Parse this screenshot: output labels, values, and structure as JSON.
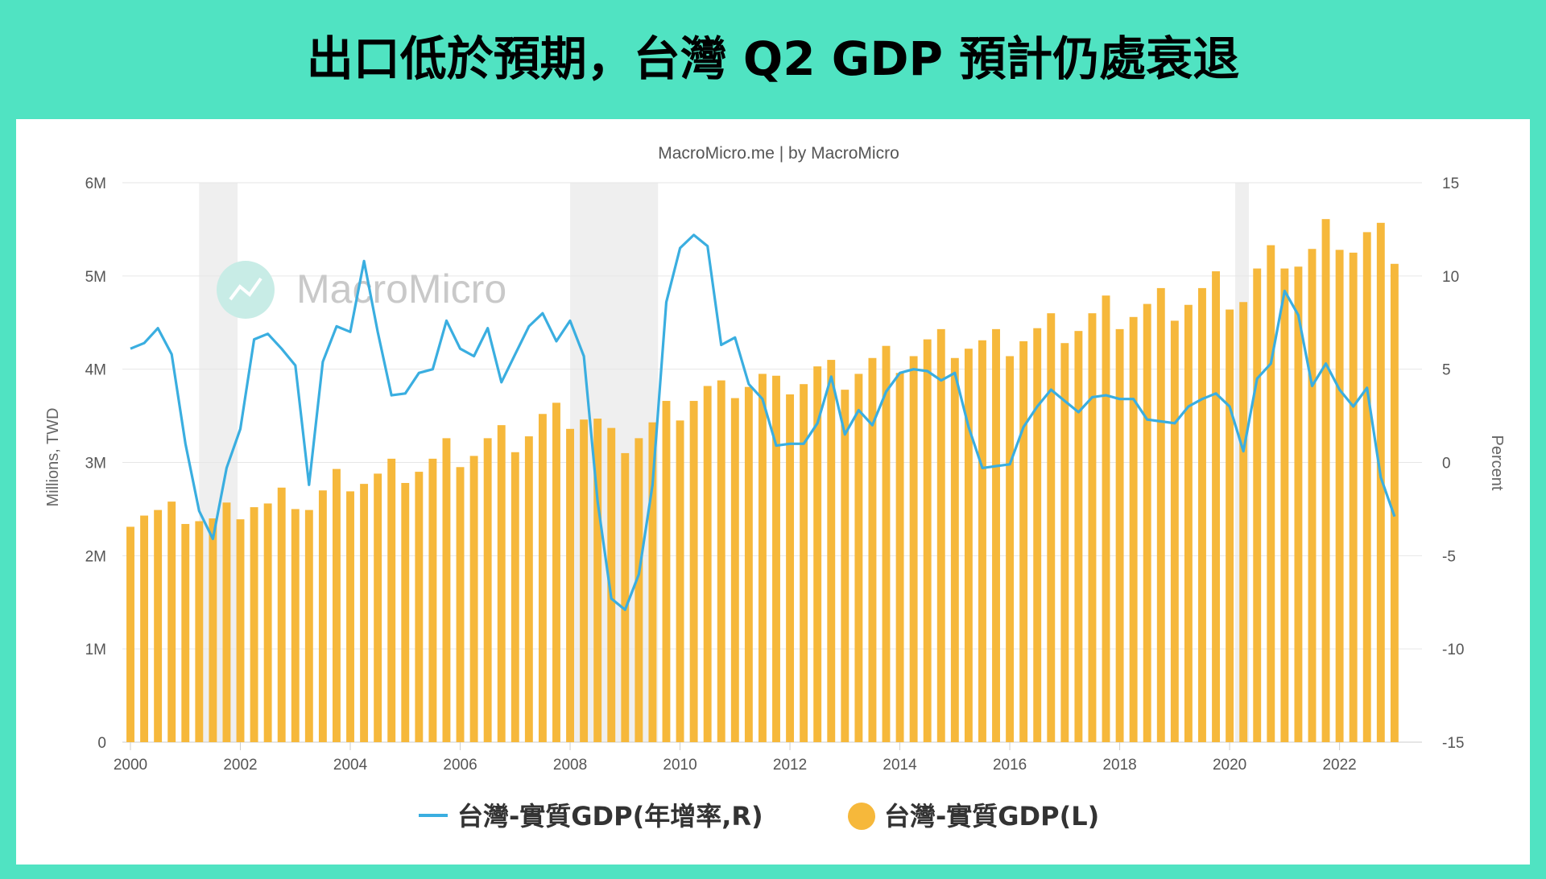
{
  "headline": "出口低於預期，台灣 Q2 GDP 預計仍處衰退",
  "colors": {
    "background": "#50e3c2",
    "bar": "#f6b83b",
    "line": "#3aaee0",
    "recession_band": "#efefef"
  },
  "chart_data": {
    "type": "bar+line",
    "subtitle": "MacroMicro.me | by MacroMicro",
    "watermark": "MacroMicro",
    "left_axis": {
      "label": "Millions, TWD",
      "ticks": [
        "0",
        "1M",
        "2M",
        "3M",
        "4M",
        "5M",
        "6M"
      ],
      "range": [
        0,
        6000000
      ]
    },
    "right_axis": {
      "label": "Percent",
      "ticks": [
        "-15",
        "-10",
        "-5",
        "0",
        "5",
        "10",
        "15"
      ],
      "range": [
        -15,
        15
      ]
    },
    "x_axis": {
      "ticks": [
        "2000",
        "2002",
        "2004",
        "2006",
        "2008",
        "2010",
        "2012",
        "2014",
        "2016",
        "2018",
        "2020",
        "2022"
      ],
      "range": [
        2000.0,
        2023.5
      ]
    },
    "recession_bands": [
      [
        2001.25,
        2001.95
      ],
      [
        2008.0,
        2009.6
      ],
      [
        2020.1,
        2020.35
      ]
    ],
    "legend": {
      "position": "bottom",
      "items": [
        {
          "label": "台灣-實質GDP(年增率,R)",
          "marker": "line"
        },
        {
          "label": "台灣-實質GDP(L)",
          "marker": "circle"
        }
      ]
    },
    "series": [
      {
        "name": "台灣-實質GDP(年增率,R)",
        "type": "line",
        "axis": "right",
        "x": [
          2000.0,
          2000.25,
          2000.5,
          2000.75,
          2001.0,
          2001.25,
          2001.5,
          2001.75,
          2002.0,
          2002.25,
          2002.5,
          2002.75,
          2003.0,
          2003.25,
          2003.5,
          2003.75,
          2004.0,
          2004.25,
          2004.5,
          2004.75,
          2005.0,
          2005.25,
          2005.5,
          2005.75,
          2006.0,
          2006.25,
          2006.5,
          2006.75,
          2007.0,
          2007.25,
          2007.5,
          2007.75,
          2008.0,
          2008.25,
          2008.5,
          2008.75,
          2009.0,
          2009.25,
          2009.5,
          2009.75,
          2010.0,
          2010.25,
          2010.5,
          2010.75,
          2011.0,
          2011.25,
          2011.5,
          2011.75,
          2012.0,
          2012.25,
          2012.5,
          2012.75,
          2013.0,
          2013.25,
          2013.5,
          2013.75,
          2014.0,
          2014.25,
          2014.5,
          2014.75,
          2015.0,
          2015.25,
          2015.5,
          2015.75,
          2016.0,
          2016.25,
          2016.5,
          2016.75,
          2017.0,
          2017.25,
          2017.5,
          2017.75,
          2018.0,
          2018.25,
          2018.5,
          2018.75,
          2019.0,
          2019.25,
          2019.5,
          2019.75,
          2020.0,
          2020.25,
          2020.5,
          2020.75,
          2021.0,
          2021.25,
          2021.5,
          2021.75,
          2022.0,
          2022.25,
          2022.5,
          2022.75,
          2023.0
        ],
        "values": [
          6.1,
          6.4,
          7.2,
          5.8,
          1.0,
          -2.6,
          -4.1,
          -0.3,
          1.8,
          6.6,
          6.9,
          6.1,
          5.2,
          -1.2,
          5.4,
          7.3,
          7.0,
          10.8,
          7.0,
          3.6,
          3.7,
          4.8,
          5.0,
          7.6,
          6.1,
          5.7,
          7.2,
          4.3,
          5.8,
          7.3,
          8.0,
          6.5,
          7.6,
          5.7,
          -2.1,
          -7.3,
          -7.9,
          -6.0,
          -1.2,
          8.6,
          11.5,
          12.2,
          11.6,
          6.3,
          6.7,
          4.2,
          3.4,
          0.9,
          1.0,
          1.0,
          2.1,
          4.6,
          1.5,
          2.8,
          2.0,
          3.8,
          4.8,
          5.0,
          4.9,
          4.4,
          4.8,
          1.9,
          -0.3,
          -0.2,
          -0.1,
          1.9,
          3.0,
          3.9,
          3.3,
          2.7,
          3.5,
          3.6,
          3.4,
          3.4,
          2.3,
          2.2,
          2.1,
          3.0,
          3.4,
          3.7,
          3.0,
          0.6,
          4.5,
          5.3,
          9.2,
          7.9,
          4.1,
          5.3,
          3.9,
          3.0,
          4.0,
          -0.8,
          -2.9
        ]
      },
      {
        "name": "台灣-實質GDP(L)",
        "type": "bar",
        "axis": "left",
        "unit": "Millions, TWD",
        "x": [
          2000.0,
          2000.25,
          2000.5,
          2000.75,
          2001.0,
          2001.25,
          2001.5,
          2001.75,
          2002.0,
          2002.25,
          2002.5,
          2002.75,
          2003.0,
          2003.25,
          2003.5,
          2003.75,
          2004.0,
          2004.25,
          2004.5,
          2004.75,
          2005.0,
          2005.25,
          2005.5,
          2005.75,
          2006.0,
          2006.25,
          2006.5,
          2006.75,
          2007.0,
          2007.25,
          2007.5,
          2007.75,
          2008.0,
          2008.25,
          2008.5,
          2008.75,
          2009.0,
          2009.25,
          2009.5,
          2009.75,
          2010.0,
          2010.25,
          2010.5,
          2010.75,
          2011.0,
          2011.25,
          2011.5,
          2011.75,
          2012.0,
          2012.25,
          2012.5,
          2012.75,
          2013.0,
          2013.25,
          2013.5,
          2013.75,
          2014.0,
          2014.25,
          2014.5,
          2014.75,
          2015.0,
          2015.25,
          2015.5,
          2015.75,
          2016.0,
          2016.25,
          2016.5,
          2016.75,
          2017.0,
          2017.25,
          2017.5,
          2017.75,
          2018.0,
          2018.25,
          2018.5,
          2018.75,
          2019.0,
          2019.25,
          2019.5,
          2019.75,
          2020.0,
          2020.25,
          2020.5,
          2020.75,
          2021.0,
          2021.25,
          2021.5,
          2021.75,
          2022.0,
          2022.25,
          2022.5,
          2022.75,
          2023.0
        ],
        "values": [
          2310000,
          2430000,
          2490000,
          2580000,
          2340000,
          2370000,
          2400000,
          2570000,
          2390000,
          2520000,
          2560000,
          2730000,
          2500000,
          2490000,
          2700000,
          2930000,
          2690000,
          2770000,
          2880000,
          3040000,
          2780000,
          2900000,
          3040000,
          3260000,
          2950000,
          3070000,
          3260000,
          3400000,
          3110000,
          3280000,
          3520000,
          3640000,
          3360000,
          3460000,
          3470000,
          3370000,
          3100000,
          3260000,
          3430000,
          3660000,
          3450000,
          3660000,
          3820000,
          3880000,
          3690000,
          3810000,
          3950000,
          3930000,
          3730000,
          3840000,
          4030000,
          4100000,
          3780000,
          3950000,
          4120000,
          4250000,
          3960000,
          4140000,
          4320000,
          4430000,
          4120000,
          4220000,
          4310000,
          4430000,
          4140000,
          4300000,
          4440000,
          4600000,
          4280000,
          4410000,
          4600000,
          4790000,
          4430000,
          4560000,
          4700000,
          4870000,
          4520000,
          4690000,
          4870000,
          5050000,
          4640000,
          4720000,
          5080000,
          5330000,
          5080000,
          5100000,
          5290000,
          5610000,
          5280000,
          5250000,
          5470000,
          5570000,
          5130000
        ]
      }
    ]
  }
}
